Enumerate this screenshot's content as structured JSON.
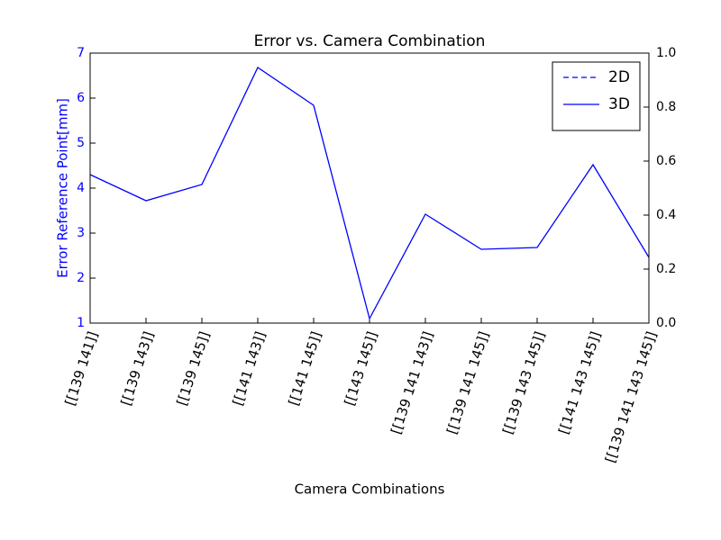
{
  "chart_data": {
    "type": "line",
    "title": "Error vs. Camera Combination",
    "xlabel": "Camera Combinations",
    "ylabel": "Error Reference Point[mm]",
    "categories": [
      "[[139 141]]",
      "[[139 143]]",
      "[[139 145]]",
      "[[141 143]]",
      "[[141 145]]",
      "[[143 145]]",
      "[[139 141 143]]",
      "[[139 141 145]]",
      "[[139 143 145]]",
      "[[141 143 145]]",
      "[[139 141 143 145]]"
    ],
    "series": [
      {
        "name": "2D",
        "color": "#0000ff",
        "dash": true
      },
      {
        "name": "3D",
        "color": "#0000ff",
        "dash": false,
        "values": [
          4.3,
          3.72,
          4.08,
          6.68,
          5.84,
          1.1,
          3.42,
          2.64,
          2.68,
          4.52,
          2.46
        ]
      }
    ],
    "ylim": [
      1,
      7
    ],
    "yticks": [
      1,
      2,
      3,
      4,
      5,
      6,
      7
    ],
    "ycolor": "#0000ff",
    "y2lim": [
      0,
      1
    ],
    "y2ticks": [
      {
        "value": 0,
        "label": "0.0"
      },
      0.2,
      0.4,
      0.6,
      0.8,
      {
        "value": 1,
        "label": "1.0"
      }
    ],
    "legend": "upper right"
  }
}
